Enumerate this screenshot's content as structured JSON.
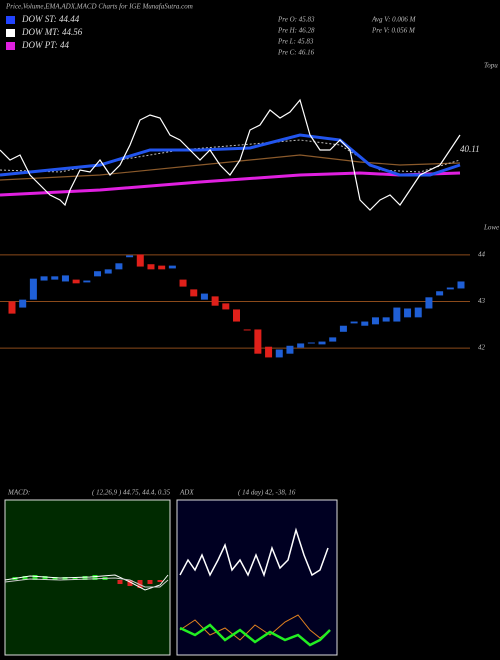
{
  "header": {
    "title": "Price,Volume,EMA,ADX,MACD Charts for IGE MunafaSutra.com",
    "dow": [
      "DOW ST: 44.44",
      "DOW MT: 44.56",
      "DOW PT: 44"
    ],
    "stats": [
      "Pre  O: 45.83",
      "Pre  H: 46.28",
      "Pre  L: 45.83",
      "Pre  C: 46.16"
    ],
    "volume": [
      "Avg V: 0.006  M",
      "Pre  V: 0.056  M"
    ]
  },
  "upper_chart": {
    "last_label": "40.11",
    "top_label": "Topu",
    "bottom_label": "Lowe"
  },
  "chart_data": {
    "type": "candlestick",
    "open": [
      43.0,
      42.87,
      43.04,
      43.45,
      43.47,
      43.43,
      43.47,
      43.41,
      43.54,
      43.6,
      43.69,
      43.95,
      44.01,
      43.8,
      43.77,
      43.71,
      43.47,
      43.26,
      43.04,
      43.11,
      42.96,
      42.83,
      42.4,
      42.4,
      42.03,
      41.8,
      41.88,
      42.01,
      42.1,
      42.08,
      42.14,
      42.35,
      42.53,
      42.48,
      42.51,
      42.57,
      42.57,
      42.66,
      42.66,
      42.85,
      43.13,
      43.26,
      43.28
    ],
    "close": [
      42.74,
      43.04,
      43.49,
      43.54,
      43.54,
      43.56,
      43.39,
      43.45,
      43.65,
      43.69,
      43.82,
      43.99,
      43.75,
      43.69,
      43.69,
      43.77,
      43.32,
      43.11,
      43.17,
      42.91,
      42.83,
      42.57,
      42.38,
      41.88,
      41.8,
      41.97,
      42.05,
      42.1,
      42.12,
      42.14,
      42.23,
      42.48,
      42.57,
      42.57,
      42.66,
      42.66,
      42.87,
      42.85,
      42.87,
      43.09,
      43.22,
      43.3,
      43.43
    ],
    "ylim": [
      41.53,
      44.32
    ],
    "yticks": [
      44,
      43,
      42
    ],
    "up_color": "#1f5fd6",
    "down_color": "#e0201a",
    "grid_color": "#8b4a1a"
  },
  "macd": {
    "label": "MACD:",
    "params": "( 12,26,9 ) 44.75, 44.4, 0.35"
  },
  "adx": {
    "label": "ADX",
    "params": "( 14  day) 42, -38, 16"
  }
}
